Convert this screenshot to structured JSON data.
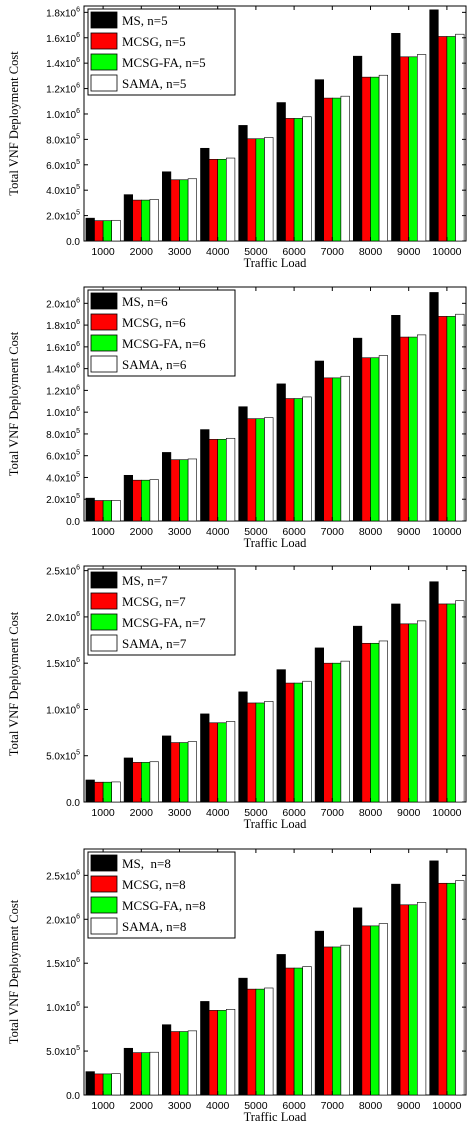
{
  "chart_data": [
    {
      "type": "bar",
      "title": "",
      "xlabel": "Traffic Load",
      "ylabel": "Total VNF Deployment Cost",
      "categories": [
        "1000",
        "2000",
        "3000",
        "4000",
        "5000",
        "6000",
        "7000",
        "8000",
        "9000",
        "10000"
      ],
      "ylim": [
        0,
        1850000
      ],
      "ytick_values": [
        0,
        200000,
        400000,
        600000,
        800000,
        1000000,
        1200000,
        1400000,
        1600000,
        1800000
      ],
      "ytick_labels": [
        {
          "m": "0.0",
          "e": ""
        },
        {
          "m": "2.0x10",
          "e": "5"
        },
        {
          "m": "4.0x10",
          "e": "5"
        },
        {
          "m": "6.0x10",
          "e": "5"
        },
        {
          "m": "8.0x10",
          "e": "5"
        },
        {
          "m": "1.0x10",
          "e": "6"
        },
        {
          "m": "1.2x10",
          "e": "6"
        },
        {
          "m": "1.4x10",
          "e": "6"
        },
        {
          "m": "1.6x10",
          "e": "6"
        },
        {
          "m": "1.8x10",
          "e": "6"
        }
      ],
      "legend_position": "top-left",
      "series": [
        {
          "name": "MS, n=5",
          "color": "#000000",
          "values": [
            180000,
            365000,
            545000,
            730000,
            910000,
            1090000,
            1270000,
            1455000,
            1635000,
            1820000
          ]
        },
        {
          "name": "MCSG, n=5",
          "color": "#ff0000",
          "values": [
            160000,
            322000,
            482000,
            643000,
            805000,
            965000,
            1125000,
            1290000,
            1450000,
            1610000
          ]
        },
        {
          "name": "MCSG-FA, n=5",
          "color": "#00ff00",
          "values": [
            160000,
            322000,
            482000,
            643000,
            805000,
            965000,
            1125000,
            1290000,
            1450000,
            1610000
          ]
        },
        {
          "name": "SAMA, n=5",
          "color": "#ffffff",
          "values": [
            163000,
            327000,
            490000,
            653000,
            815000,
            978000,
            1140000,
            1305000,
            1468000,
            1628000
          ]
        }
      ]
    },
    {
      "type": "bar",
      "title": "",
      "xlabel": "Traffic Load",
      "ylabel": "Total VNF Deployment Cost",
      "categories": [
        "1000",
        "2000",
        "3000",
        "4000",
        "5000",
        "6000",
        "7000",
        "8000",
        "9000",
        "10000"
      ],
      "ylim": [
        0,
        2150000
      ],
      "ytick_values": [
        0,
        200000,
        400000,
        600000,
        800000,
        1000000,
        1200000,
        1400000,
        1600000,
        1800000,
        2000000
      ],
      "ytick_labels": [
        {
          "m": "0.0",
          "e": ""
        },
        {
          "m": "2.0x10",
          "e": "5"
        },
        {
          "m": "4.0x10",
          "e": "5"
        },
        {
          "m": "6.0x10",
          "e": "5"
        },
        {
          "m": "8.0x10",
          "e": "5"
        },
        {
          "m": "1.0x10",
          "e": "6"
        },
        {
          "m": "1.2x10",
          "e": "6"
        },
        {
          "m": "1.4x10",
          "e": "6"
        },
        {
          "m": "1.6x10",
          "e": "6"
        },
        {
          "m": "1.8x10",
          "e": "6"
        },
        {
          "m": "2.0x10",
          "e": "6"
        }
      ],
      "legend_position": "top-left",
      "series": [
        {
          "name": "MS, n=6",
          "color": "#000000",
          "values": [
            210000,
            420000,
            630000,
            840000,
            1050000,
            1260000,
            1470000,
            1680000,
            1890000,
            2100000
          ]
        },
        {
          "name": "MCSG, n=6",
          "color": "#ff0000",
          "values": [
            188000,
            375000,
            563000,
            750000,
            940000,
            1125000,
            1315000,
            1500000,
            1690000,
            1880000
          ]
        },
        {
          "name": "MCSG-FA, n=6",
          "color": "#00ff00",
          "values": [
            188000,
            375000,
            563000,
            750000,
            940000,
            1125000,
            1315000,
            1500000,
            1690000,
            1880000
          ]
        },
        {
          "name": "SAMA, n=6",
          "color": "#ffffff",
          "values": [
            190000,
            380000,
            570000,
            760000,
            950000,
            1140000,
            1330000,
            1520000,
            1710000,
            1900000
          ]
        }
      ]
    },
    {
      "type": "bar",
      "title": "",
      "xlabel": "Traffic Load",
      "ylabel": "Total VNF Deployment Cost",
      "categories": [
        "1000",
        "2000",
        "3000",
        "4000",
        "5000",
        "6000",
        "7000",
        "8000",
        "9000",
        "10000"
      ],
      "ylim": [
        0,
        2550000
      ],
      "ytick_values": [
        0,
        500000,
        1000000,
        1500000,
        2000000,
        2500000
      ],
      "ytick_labels": [
        {
          "m": "0.0",
          "e": ""
        },
        {
          "m": "5.0x10",
          "e": "5"
        },
        {
          "m": "1.0x10",
          "e": "6"
        },
        {
          "m": "1.5x10",
          "e": "6"
        },
        {
          "m": "2.0x10",
          "e": "6"
        },
        {
          "m": "2.5x10",
          "e": "6"
        }
      ],
      "legend_position": "top-left",
      "series": [
        {
          "name": "MS, n=7",
          "color": "#000000",
          "values": [
            238000,
            476000,
            714000,
            952000,
            1190000,
            1430000,
            1665000,
            1900000,
            2140000,
            2380000
          ]
        },
        {
          "name": "MCSG, n=7",
          "color": "#ff0000",
          "values": [
            214000,
            428000,
            642000,
            856000,
            1070000,
            1285000,
            1500000,
            1715000,
            1925000,
            2140000
          ]
        },
        {
          "name": "MCSG-FA, n=7",
          "color": "#00ff00",
          "values": [
            214000,
            428000,
            642000,
            856000,
            1070000,
            1285000,
            1500000,
            1715000,
            1925000,
            2140000
          ]
        },
        {
          "name": "SAMA, n=7",
          "color": "#ffffff",
          "values": [
            217000,
            435000,
            652000,
            870000,
            1087000,
            1305000,
            1522000,
            1740000,
            1957000,
            2175000
          ]
        }
      ]
    },
    {
      "type": "bar",
      "title": "",
      "xlabel": "Traffic Load",
      "ylabel": "Total VNF Deployment Cost",
      "categories": [
        "1000",
        "2000",
        "3000",
        "4000",
        "5000",
        "6000",
        "7000",
        "8000",
        "9000",
        "10000"
      ],
      "ylim": [
        0,
        2800000
      ],
      "ytick_values": [
        0,
        500000,
        1000000,
        1500000,
        2000000,
        2500000
      ],
      "ytick_labels": [
        {
          "m": "0.0",
          "e": ""
        },
        {
          "m": "5.0x10",
          "e": "5"
        },
        {
          "m": "1.0x10",
          "e": "6"
        },
        {
          "m": "1.5x10",
          "e": "6"
        },
        {
          "m": "2.0x10",
          "e": "6"
        },
        {
          "m": "2.5x10",
          "e": "6"
        }
      ],
      "legend_position": "top-left",
      "series": [
        {
          "name": "MS,  n=8",
          "color": "#000000",
          "values": [
            266000,
            532000,
            800000,
            1065000,
            1330000,
            1600000,
            1865000,
            2130000,
            2400000,
            2665000
          ]
        },
        {
          "name": "MCSG, n=8",
          "color": "#ff0000",
          "values": [
            240000,
            482000,
            722000,
            963000,
            1205000,
            1445000,
            1685000,
            1925000,
            2165000,
            2410000
          ]
        },
        {
          "name": "MCSG-FA, n=8",
          "color": "#00ff00",
          "values": [
            240000,
            482000,
            722000,
            963000,
            1205000,
            1445000,
            1685000,
            1925000,
            2165000,
            2410000
          ]
        },
        {
          "name": "SAMA, n=8",
          "color": "#ffffff",
          "values": [
            243000,
            487000,
            730000,
            975000,
            1218000,
            1462000,
            1705000,
            1950000,
            2192000,
            2440000
          ]
        }
      ]
    }
  ]
}
